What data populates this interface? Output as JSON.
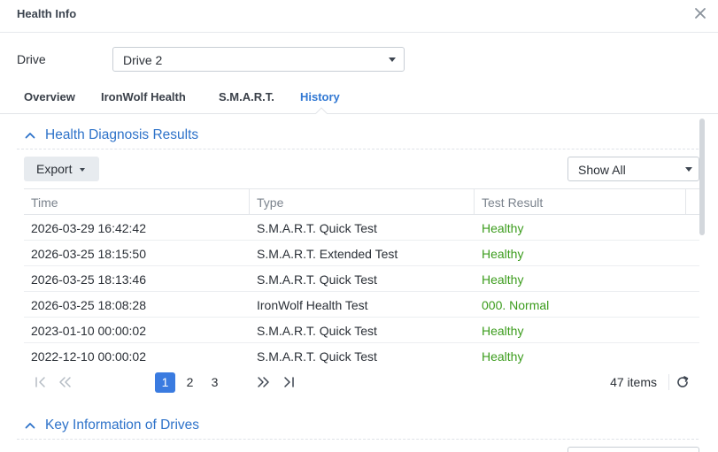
{
  "window": {
    "title": "Health Info",
    "close_icon": "close-icon"
  },
  "drive": {
    "label": "Drive",
    "selected": "Drive 2"
  },
  "tabs": [
    {
      "label": "Overview",
      "active": false
    },
    {
      "label": "IronWolf Health",
      "active": false
    },
    {
      "label": "S.M.A.R.T.",
      "active": false
    },
    {
      "label": "History",
      "active": true
    }
  ],
  "section1": {
    "title": "Health Diagnosis Results"
  },
  "toolbar": {
    "export_label": "Export",
    "filter_selected": "Show All"
  },
  "table": {
    "columns": [
      "Time",
      "Type",
      "Test Result"
    ],
    "rows": [
      {
        "time": "2026-03-29 16:42:42",
        "type": "S.M.A.R.T. Quick Test",
        "result": "Healthy"
      },
      {
        "time": "2026-03-25 18:15:50",
        "type": "S.M.A.R.T. Extended Test",
        "result": "Healthy"
      },
      {
        "time": "2026-03-25 18:13:46",
        "type": "S.M.A.R.T. Quick Test",
        "result": "Healthy"
      },
      {
        "time": "2026-03-25 18:08:28",
        "type": "IronWolf Health Test",
        "result": "000. Normal"
      },
      {
        "time": "2023-01-10 00:00:02",
        "type": "S.M.A.R.T. Quick Test",
        "result": "Healthy"
      },
      {
        "time": "2022-12-10 00:00:02",
        "type": "S.M.A.R.T. Quick Test",
        "result": "Healthy"
      }
    ]
  },
  "pager": {
    "pages": [
      "1",
      "2",
      "3"
    ],
    "current_page": "1",
    "items_text": "47 items"
  },
  "section2": {
    "title": "Key Information of Drives"
  },
  "colors": {
    "accent": "#3178d3",
    "healthy": "#3b9c1c",
    "active_page": "#3a7be0"
  }
}
